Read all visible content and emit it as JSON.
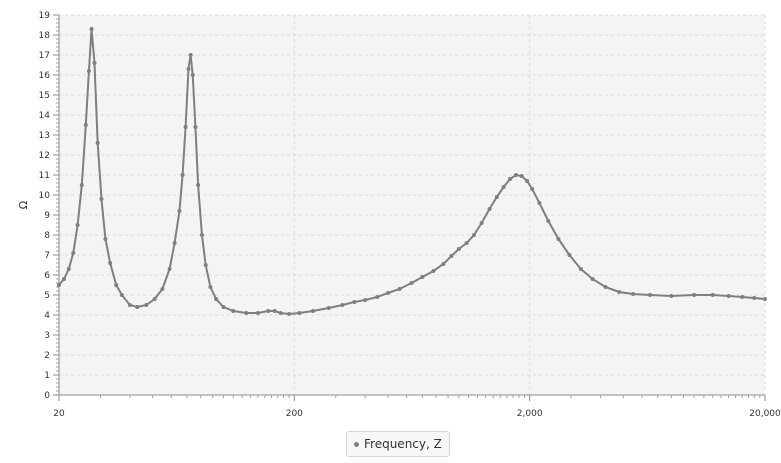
{
  "chart_data": {
    "type": "line",
    "title": "",
    "xlabel": "",
    "ylabel": "Ω",
    "xscale": "log",
    "xlim": [
      20,
      20000
    ],
    "ylim": [
      0,
      19
    ],
    "x_ticks": [
      20,
      200,
      2000,
      20000
    ],
    "x_tick_labels": [
      "20",
      "200",
      "2,000",
      "20,000"
    ],
    "y_ticks": [
      0,
      1,
      2,
      3,
      4,
      5,
      6,
      7,
      8,
      9,
      10,
      11,
      12,
      13,
      14,
      15,
      16,
      17,
      18,
      19
    ],
    "grid": true,
    "legend_position": "bottom-center",
    "series": [
      {
        "name": "Frequency, Z",
        "color": "#7f7f7f",
        "markers": true,
        "points": [
          [
            20,
            5.5
          ],
          [
            21,
            5.8
          ],
          [
            22,
            6.3
          ],
          [
            23,
            7.1
          ],
          [
            24,
            8.5
          ],
          [
            25,
            10.5
          ],
          [
            26,
            13.5
          ],
          [
            26.8,
            16.2
          ],
          [
            27.5,
            18.3
          ],
          [
            28.3,
            16.6
          ],
          [
            29.2,
            12.6
          ],
          [
            30.3,
            9.8
          ],
          [
            31.5,
            7.8
          ],
          [
            33,
            6.6
          ],
          [
            35,
            5.5
          ],
          [
            37,
            5.0
          ],
          [
            40,
            4.5
          ],
          [
            43,
            4.4
          ],
          [
            47,
            4.5
          ],
          [
            51,
            4.8
          ],
          [
            55,
            5.3
          ],
          [
            59,
            6.3
          ],
          [
            62,
            7.6
          ],
          [
            65,
            9.2
          ],
          [
            67,
            11.0
          ],
          [
            69,
            13.4
          ],
          [
            71,
            16.3
          ],
          [
            72.5,
            17.0
          ],
          [
            74,
            16.0
          ],
          [
            76,
            13.4
          ],
          [
            78,
            10.5
          ],
          [
            81,
            8.0
          ],
          [
            84,
            6.5
          ],
          [
            88,
            5.4
          ],
          [
            93,
            4.8
          ],
          [
            100,
            4.4
          ],
          [
            110,
            4.2
          ],
          [
            125,
            4.1
          ],
          [
            140,
            4.1
          ],
          [
            155,
            4.2
          ],
          [
            165,
            4.2
          ],
          [
            175,
            4.1
          ],
          [
            190,
            4.05
          ],
          [
            210,
            4.1
          ],
          [
            240,
            4.2
          ],
          [
            280,
            4.35
          ],
          [
            320,
            4.5
          ],
          [
            360,
            4.65
          ],
          [
            400,
            4.75
          ],
          [
            450,
            4.9
          ],
          [
            500,
            5.1
          ],
          [
            560,
            5.3
          ],
          [
            630,
            5.6
          ],
          [
            700,
            5.9
          ],
          [
            780,
            6.2
          ],
          [
            860,
            6.55
          ],
          [
            930,
            6.95
          ],
          [
            1000,
            7.3
          ],
          [
            1080,
            7.6
          ],
          [
            1160,
            8.0
          ],
          [
            1250,
            8.6
          ],
          [
            1350,
            9.3
          ],
          [
            1450,
            9.9
          ],
          [
            1550,
            10.4
          ],
          [
            1650,
            10.8
          ],
          [
            1750,
            11.0
          ],
          [
            1850,
            10.95
          ],
          [
            1950,
            10.7
          ],
          [
            2050,
            10.3
          ],
          [
            2200,
            9.6
          ],
          [
            2400,
            8.7
          ],
          [
            2650,
            7.8
          ],
          [
            2950,
            7.0
          ],
          [
            3300,
            6.3
          ],
          [
            3700,
            5.8
          ],
          [
            4200,
            5.4
          ],
          [
            4800,
            5.15
          ],
          [
            5500,
            5.05
          ],
          [
            6500,
            5.0
          ],
          [
            8000,
            4.95
          ],
          [
            10000,
            5.0
          ],
          [
            12000,
            5.0
          ],
          [
            14000,
            4.95
          ],
          [
            16000,
            4.9
          ],
          [
            18000,
            4.85
          ],
          [
            20000,
            4.8
          ]
        ]
      }
    ]
  }
}
